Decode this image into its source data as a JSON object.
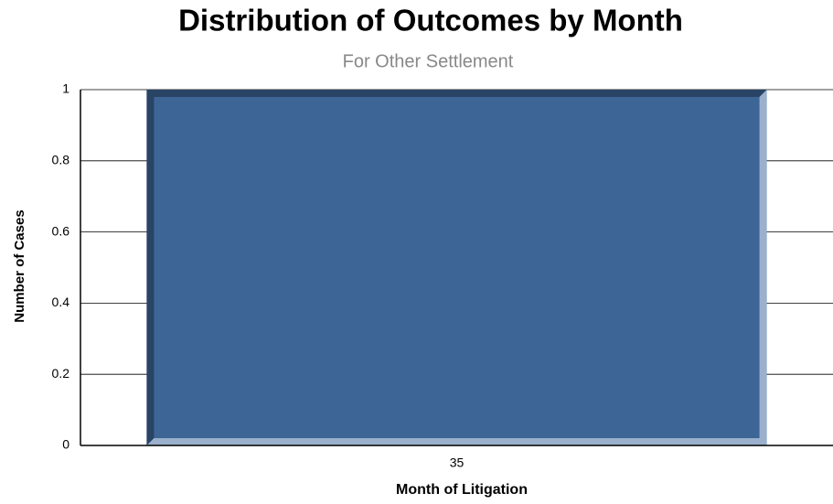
{
  "chart_data": {
    "type": "bar",
    "title": "Distribution of Outcomes by Month",
    "subtitle": "For Other Settlement",
    "x_label": "Month of Litigation",
    "y_label": "Number of Cases",
    "categories": [
      "35"
    ],
    "values": [
      1
    ],
    "color": "#3d6696",
    "ylim": [
      0,
      1
    ],
    "yticks": [
      0,
      0.2,
      0.4,
      0.6,
      0.8,
      1
    ],
    "grid": true
  }
}
